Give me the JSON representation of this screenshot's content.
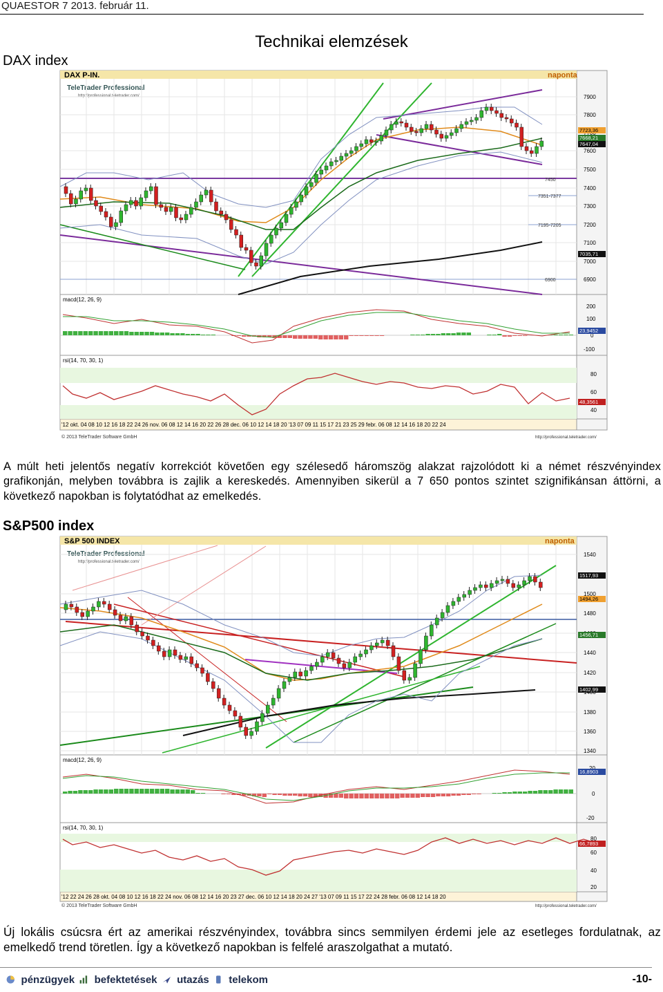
{
  "header": {
    "left": "QUAESTOR 7   2013. február 11."
  },
  "section_title": "Technikai elemzések",
  "dax": {
    "title": "DAX index",
    "chart_title": "DAX P-IN.",
    "period": "naponta",
    "brand": "TeleTrader Professional",
    "brand_url": "http://professional.teletrader.com/",
    "price_axis": [
      "7900",
      "7800",
      "7700",
      "7600",
      "7500",
      "7400",
      "7300",
      "7200",
      "7100",
      "7000",
      "6900"
    ],
    "level_labels": [
      "7450",
      "7351-7377",
      "7195-7205",
      "6900"
    ],
    "tags": [
      "7723,36",
      "7668,21",
      "7647,04",
      "7035,71"
    ],
    "macd_label": "macd(12, 26, 9)",
    "macd_axis": [
      "200",
      "100",
      "0",
      "-100"
    ],
    "macd_tag": "23,9452",
    "rsi_label": "rsi(14, 70, 30, 1)",
    "rsi_axis": [
      "80",
      "60",
      "40"
    ],
    "rsi_tag": "48,3561",
    "date_axis": "'12  okt.  04 08 10 12 16 18 22 24 26    nov.  06 08 12 14 16 20 22 26 28   dec.  06 10 12 14 18 20    '13  07 09 11 15 17 21 23 25 29   febr.  06 08 12 14 16 18 20 22 24",
    "copyright": "© 2013 TeleTrader Software GmbH",
    "footer_url": "http://professional.teletrader.com/"
  },
  "p1": "A múlt heti jelentős negatív korrekciót követően egy szélesedő háromszög alakzat rajzolódott ki a német részvényindex grafikonján, melyben továbbra is zajlik a kereskedés. Amennyiben sikerül a 7 650 pontos szintet szignifikánsan áttörni, a következő napokban is folytatódhat az emelkedés.",
  "sp": {
    "title": "S&P500 index",
    "chart_title": "S&P 500 INDEX",
    "period": "naponta",
    "brand": "TeleTrader Professional",
    "brand_url": "http://professional.teletrader.com/",
    "price_axis": [
      "1540",
      "1500",
      "1480",
      "1460",
      "1440",
      "1420",
      "1400",
      "1380",
      "1360",
      "1340"
    ],
    "tags": [
      "1517,93",
      "1494,26",
      "1456,71",
      "1402,99"
    ],
    "macd_label": "macd(12, 26, 9)",
    "macd_axis": [
      "20",
      "0",
      "-20"
    ],
    "macd_tag": "16,8903",
    "rsi_label": "rsi(14, 70, 30, 1)",
    "rsi_axis": [
      "80",
      "60",
      "40",
      "20"
    ],
    "rsi_tag": "66,7893",
    "date_axis": "'12  22 24 26 28   okt.  04 08 10 12 16 18 22 24    nov.  06 08 12 14 16 20 23 27   dec.  06 10 12 14 18 20 24 27    '13  07 09 11 15 17 22 24 28   febr.  06 08 12 14 18 20",
    "copyright": "© 2013 TeleTrader Software GmbH",
    "footer_url": "http://professional.teletrader.com/"
  },
  "p2": "Új lokális csúcsra ért az amerikai részvényindex, továbbra sincs semmilyen érdemi jele az esetleges fordulatnak, az emelkedő trend töretlen. Így a következő napokban is felfelé araszolgathat a mutató.",
  "footer": {
    "items": [
      "pénzügyek",
      "befektetések",
      "utazás",
      "telekom"
    ],
    "page": "-10-"
  }
}
